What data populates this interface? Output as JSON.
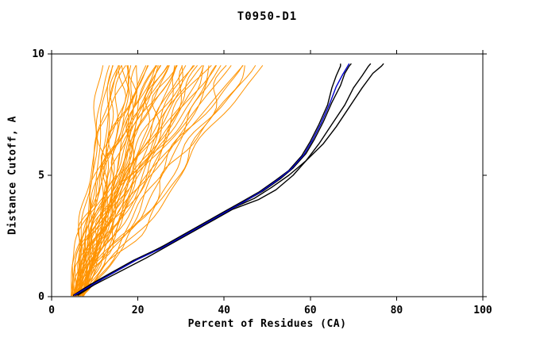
{
  "chart_data": {
    "type": "line",
    "title": "T0950-D1",
    "xlabel": "Percent of Residues (CA)",
    "ylabel": "Distance Cutoff, A",
    "xlim": [
      0,
      100
    ],
    "ylim": [
      0,
      10
    ],
    "xticks": [
      0,
      20,
      40,
      60,
      80,
      100
    ],
    "yticks": [
      0,
      5,
      10
    ],
    "grid": false,
    "legend_position": "none",
    "colors": {
      "model_lines": "#ff9300",
      "best_lines": "#000000",
      "highlight_line": "#0000cd",
      "axis": "#000000",
      "background": "#ffffff"
    },
    "y_top_of_curves": 9.6,
    "orange_models": {
      "description": "ensemble of server model curves; each entry [start_x, top_x, bend, wiggle_amp, wiggle_freq, wiggle_phase]",
      "params": [
        [
          5.0,
          13,
          1.0,
          0.6,
          1.4,
          0.3
        ],
        [
          6.2,
          15,
          0.9,
          1.1,
          1.0,
          2.1
        ],
        [
          4.6,
          17,
          1.15,
          1.4,
          0.8,
          4.4
        ],
        [
          7.1,
          19,
          0.8,
          0.9,
          1.7,
          1.0
        ],
        [
          5.6,
          21,
          1.25,
          1.8,
          1.2,
          3.2
        ],
        [
          6.6,
          23,
          1.0,
          1.6,
          0.9,
          5.1
        ],
        [
          4.9,
          25,
          0.9,
          2.1,
          1.4,
          0.8
        ],
        [
          7.4,
          27,
          1.3,
          1.3,
          1.1,
          2.6
        ],
        [
          5.3,
          29,
          0.85,
          2.4,
          1.5,
          4.7
        ],
        [
          6.9,
          31,
          1.1,
          1.1,
          1.2,
          1.7
        ],
        [
          5.1,
          33,
          0.95,
          1.9,
          0.9,
          3.9
        ],
        [
          6.0,
          35,
          1.2,
          1.5,
          1.3,
          0.6
        ],
        [
          4.7,
          37,
          1.05,
          2.2,
          1.0,
          2.9
        ],
        [
          7.2,
          39,
          0.9,
          1.0,
          1.5,
          5.5
        ],
        [
          5.8,
          41,
          1.3,
          1.7,
          0.8,
          1.4
        ],
        [
          6.4,
          43,
          1.0,
          2.0,
          1.2,
          3.6
        ],
        [
          5.0,
          45,
          0.8,
          1.2,
          1.6,
          0.2
        ],
        [
          6.1,
          14,
          1.1,
          0.7,
          1.1,
          2.4
        ],
        [
          4.8,
          16,
          0.95,
          1.3,
          1.4,
          4.9
        ],
        [
          7.0,
          18,
          1.2,
          1.6,
          0.9,
          1.1
        ],
        [
          5.4,
          20,
          0.9,
          2.3,
          1.2,
          3.0
        ],
        [
          6.7,
          22,
          1.05,
          1.0,
          1.5,
          5.3
        ],
        [
          5.2,
          24,
          1.35,
          1.8,
          0.8,
          0.7
        ],
        [
          6.3,
          26,
          0.85,
          1.4,
          1.3,
          2.2
        ],
        [
          4.5,
          28,
          1.1,
          2.0,
          1.0,
          4.2
        ],
        [
          7.3,
          30,
          0.95,
          1.2,
          1.6,
          1.6
        ],
        [
          5.7,
          32,
          1.25,
          1.6,
          1.1,
          3.8
        ],
        [
          6.5,
          34,
          1.0,
          2.2,
          0.9,
          0.4
        ],
        [
          5.0,
          36,
          0.9,
          1.1,
          1.4,
          2.8
        ],
        [
          6.2,
          38,
          1.15,
          1.9,
          1.2,
          5.0
        ],
        [
          4.9,
          40,
          1.05,
          1.5,
          1.0,
          1.3
        ],
        [
          6.8,
          42,
          0.8,
          2.1,
          1.5,
          3.4
        ],
        [
          5.5,
          44,
          1.2,
          1.0,
          0.8,
          0.9
        ],
        [
          6.0,
          46,
          0.95,
          1.7,
          1.3,
          2.5
        ],
        [
          5.2,
          15,
          1.3,
          0.8,
          1.1,
          4.0
        ],
        [
          6.6,
          17,
          0.9,
          1.5,
          1.6,
          1.5
        ],
        [
          4.7,
          19,
          1.1,
          2.3,
          0.9,
          3.1
        ],
        [
          7.1,
          21,
          1.0,
          1.2,
          1.2,
          5.4
        ],
        [
          5.9,
          23,
          0.85,
          1.8,
          1.4,
          0.5
        ],
        [
          6.4,
          25,
          1.25,
          1.4,
          1.0,
          2.3
        ],
        [
          5.1,
          27,
          1.0,
          2.0,
          1.5,
          4.5
        ],
        [
          6.9,
          29,
          1.15,
          1.1,
          0.8,
          1.9
        ],
        [
          5.6,
          31,
          0.9,
          1.6,
          1.3,
          3.7
        ],
        [
          6.1,
          33,
          1.05,
          2.4,
          1.1,
          0.1
        ],
        [
          4.8,
          35,
          1.2,
          1.3,
          1.6,
          2.0
        ],
        [
          7.0,
          37,
          0.95,
          1.9,
          0.9,
          4.8
        ],
        [
          5.3,
          12,
          1.1,
          0.9,
          1.2,
          1.0
        ],
        [
          6.5,
          20,
          1.0,
          2.1,
          1.4,
          3.5
        ],
        [
          5.0,
          24,
          0.9,
          1.5,
          1.0,
          5.2
        ],
        [
          6.2,
          28,
          1.2,
          1.2,
          1.5,
          0.8
        ],
        [
          5.7,
          22,
          1.0,
          2.2,
          0.9,
          2.7
        ],
        [
          6.3,
          18,
          0.85,
          1.7,
          1.3,
          4.3
        ],
        [
          4.9,
          26,
          1.15,
          1.0,
          1.1,
          1.2
        ],
        [
          6.7,
          48,
          0.9,
          1.4,
          1.2,
          3.3
        ],
        [
          5.4,
          16,
          1.05,
          1.9,
          1.5,
          0.6
        ]
      ]
    },
    "black_curves": [
      {
        "points": [
          [
            5,
            0.05
          ],
          [
            9,
            0.5
          ],
          [
            14,
            1.0
          ],
          [
            19,
            1.5
          ],
          [
            25,
            2.0
          ],
          [
            30,
            2.5
          ],
          [
            35,
            3.0
          ],
          [
            40,
            3.5
          ],
          [
            44,
            3.9
          ],
          [
            48,
            4.3
          ],
          [
            52,
            4.8
          ],
          [
            55,
            5.2
          ],
          [
            58,
            5.8
          ],
          [
            60,
            6.4
          ],
          [
            62,
            7.1
          ],
          [
            64,
            7.9
          ],
          [
            65,
            8.6
          ],
          [
            66,
            9.1
          ],
          [
            67,
            9.5
          ],
          [
            67,
            9.6
          ]
        ]
      },
      {
        "points": [
          [
            5.5,
            0.05
          ],
          [
            10,
            0.55
          ],
          [
            15,
            1.05
          ],
          [
            20,
            1.55
          ],
          [
            26,
            2.05
          ],
          [
            31,
            2.55
          ],
          [
            36,
            3.05
          ],
          [
            41,
            3.55
          ],
          [
            45,
            3.95
          ],
          [
            49,
            4.35
          ],
          [
            53,
            4.85
          ],
          [
            56,
            5.3
          ],
          [
            59,
            5.9
          ],
          [
            61,
            6.5
          ],
          [
            63,
            7.2
          ],
          [
            65,
            8.0
          ],
          [
            67,
            8.7
          ],
          [
            68,
            9.2
          ],
          [
            69,
            9.5
          ],
          [
            69.5,
            9.6
          ]
        ]
      },
      {
        "points": [
          [
            6,
            0.05
          ],
          [
            10,
            0.5
          ],
          [
            16,
            1.05
          ],
          [
            22,
            1.6
          ],
          [
            28,
            2.2
          ],
          [
            33,
            2.7
          ],
          [
            38,
            3.2
          ],
          [
            42,
            3.6
          ],
          [
            48,
            4.0
          ],
          [
            52,
            4.4
          ],
          [
            56,
            5.0
          ],
          [
            59,
            5.6
          ],
          [
            62,
            6.3
          ],
          [
            65,
            7.1
          ],
          [
            68,
            7.9
          ],
          [
            70,
            8.6
          ],
          [
            72,
            9.1
          ],
          [
            73.5,
            9.5
          ],
          [
            74,
            9.6
          ]
        ]
      },
      {
        "points": [
          [
            5,
            0.05
          ],
          [
            9,
            0.5
          ],
          [
            14,
            1.0
          ],
          [
            20,
            1.55
          ],
          [
            26,
            2.1
          ],
          [
            32,
            2.65
          ],
          [
            37,
            3.15
          ],
          [
            42,
            3.65
          ],
          [
            47,
            4.05
          ],
          [
            51,
            4.5
          ],
          [
            55,
            5.0
          ],
          [
            59,
            5.6
          ],
          [
            63,
            6.3
          ],
          [
            66,
            7.0
          ],
          [
            69,
            7.8
          ],
          [
            72,
            8.6
          ],
          [
            74.5,
            9.2
          ],
          [
            76.5,
            9.5
          ],
          [
            77,
            9.6
          ]
        ]
      }
    ],
    "blue_curve": {
      "points": [
        [
          5.2,
          0.05
        ],
        [
          9.5,
          0.5
        ],
        [
          14.5,
          1.0
        ],
        [
          19.5,
          1.5
        ],
        [
          25.5,
          2.0
        ],
        [
          30.5,
          2.5
        ],
        [
          35.5,
          3.0
        ],
        [
          40.5,
          3.5
        ],
        [
          44.5,
          3.9
        ],
        [
          48.5,
          4.32
        ],
        [
          52.5,
          4.82
        ],
        [
          55.5,
          5.25
        ],
        [
          58.5,
          5.85
        ],
        [
          60.5,
          6.45
        ],
        [
          62.5,
          7.15
        ],
        [
          64.5,
          7.95
        ],
        [
          66,
          8.65
        ],
        [
          67.5,
          9.15
        ],
        [
          68.5,
          9.45
        ],
        [
          69,
          9.6
        ]
      ]
    }
  }
}
